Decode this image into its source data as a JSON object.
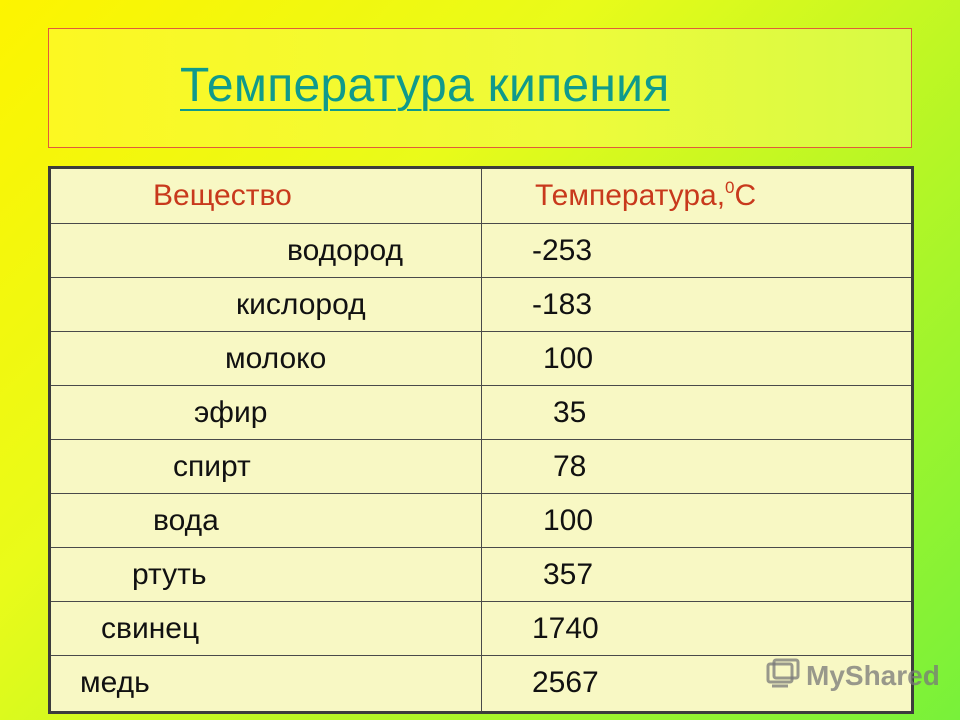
{
  "title": "Температура кипения",
  "table": {
    "header": {
      "col1": "Вещество",
      "col2_main": "Температура,",
      "col2_sup": "0",
      "col2_unit": "С"
    },
    "rows": [
      {
        "substance": "водород",
        "temp": "-253"
      },
      {
        "substance": "кислород",
        "temp": "-183"
      },
      {
        "substance": "молоко",
        "temp": "100"
      },
      {
        "substance": "эфир",
        "temp": "35"
      },
      {
        "substance": "спирт",
        "temp": "78"
      },
      {
        "substance": "вода",
        "temp": "100"
      },
      {
        "substance": "ртуть",
        "temp": "357"
      },
      {
        "substance": "свинец",
        "temp": "1740"
      },
      {
        "substance": "медь",
        "temp": "2567"
      }
    ]
  },
  "watermark": {
    "text": "MyShared",
    "icon": "myshared-logo-icon"
  },
  "colors": {
    "title": "#0f9a8c",
    "header_text": "#c8391c",
    "table_bg": "#f8f8c4"
  }
}
